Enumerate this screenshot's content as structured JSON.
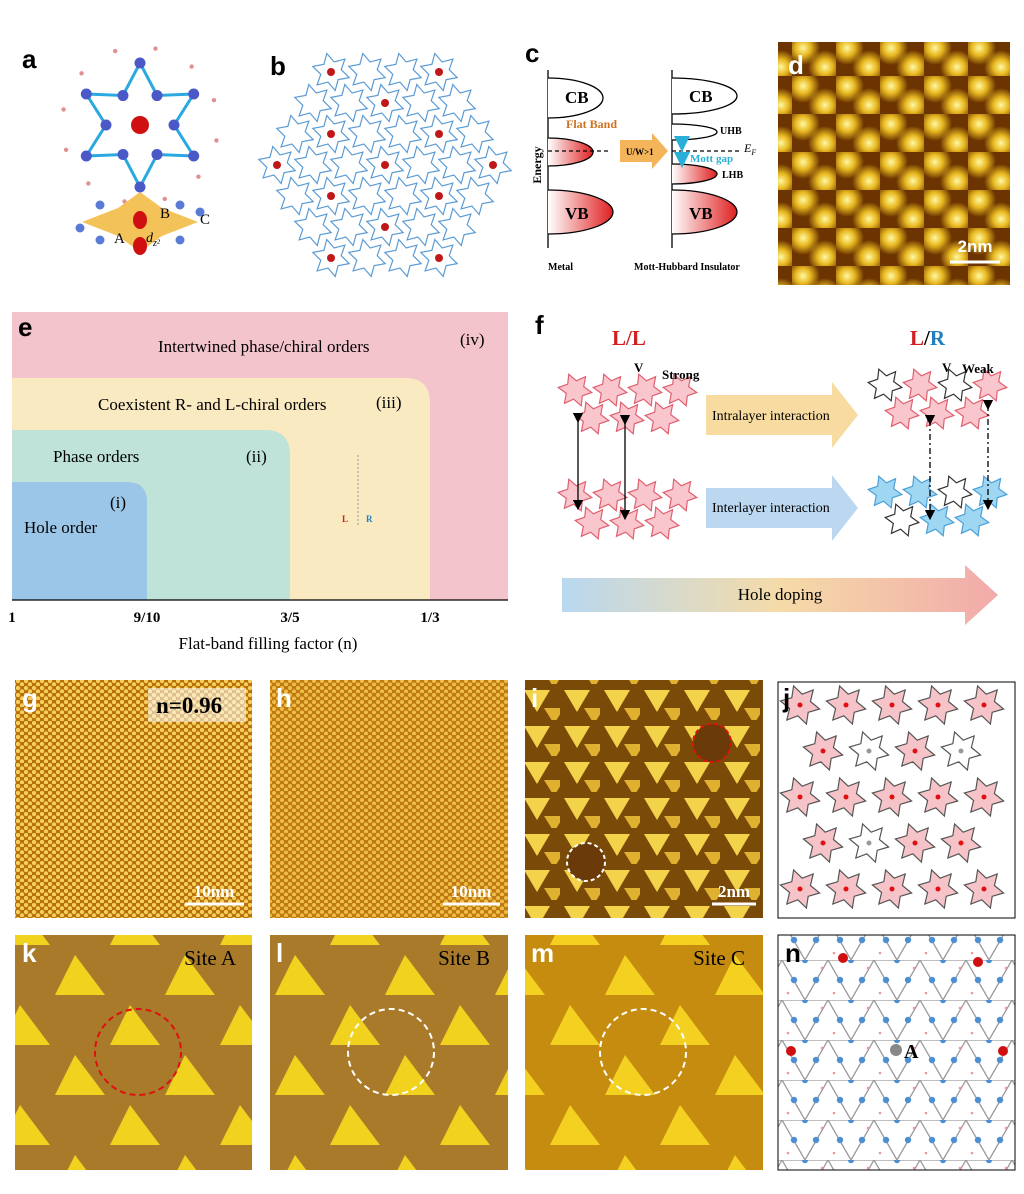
{
  "panels": {
    "a": {
      "label": "a",
      "site_a": "A",
      "site_b": "B",
      "site_c": "C",
      "orbital": "d",
      "orbital_sub": "z²"
    },
    "b": {
      "label": "b"
    },
    "c": {
      "label": "c",
      "energy_axis": "Energy",
      "left": {
        "cb": "CB",
        "flat_band": "Flat Band",
        "vb": "VB",
        "caption": "Metal"
      },
      "arrow": "U/W>1",
      "right": {
        "cb": "CB",
        "uhb": "UHB",
        "fermi": "E",
        "fermi_sub": "F",
        "mott_gap": "Mott gap",
        "lhb": "LHB",
        "vb": "VB",
        "caption": "Mott-Hubbard Insulator"
      }
    },
    "d": {
      "label": "d",
      "scale_bar": "2nm"
    },
    "e": {
      "label": "e",
      "regions": [
        {
          "text": "Intertwined phase/chiral orders",
          "tag": "(iv)"
        },
        {
          "text": "Coexistent R- and L-chiral orders",
          "tag": "(iii)"
        },
        {
          "text": "Phase orders",
          "tag": "(ii)"
        },
        {
          "text": "Hole order",
          "tag": "(i)"
        }
      ],
      "chiral_left": "L",
      "chiral_right": "R",
      "ticks": [
        "1",
        "9/10",
        "3/5",
        "1/3"
      ],
      "axis_label": "Flat-band filling factor (n)"
    },
    "f": {
      "label": "f",
      "left_title": {
        "first": "L",
        "slash": "/",
        "second": "L"
      },
      "right_title": {
        "first": "L",
        "slash": "/",
        "second": "R"
      },
      "left_v": "V",
      "strong": "Strong",
      "right_v": "V",
      "weak": "Weak",
      "intralayer": "Intralayer interaction",
      "interlayer": "Interlayer interaction",
      "doping": "Hole doping"
    },
    "g": {
      "label": "g",
      "filling": "n=0.96",
      "scale_bar": "10nm"
    },
    "h": {
      "label": "h",
      "scale_bar": "10nm"
    },
    "i": {
      "label": "i",
      "scale_bar": "2nm"
    },
    "j": {
      "label": "j"
    },
    "k": {
      "label": "k",
      "site": "Site A"
    },
    "l": {
      "label": "l",
      "site": "Site B"
    },
    "m": {
      "label": "m",
      "site": "Site C"
    },
    "n": {
      "label": "n",
      "site": "A"
    }
  }
}
